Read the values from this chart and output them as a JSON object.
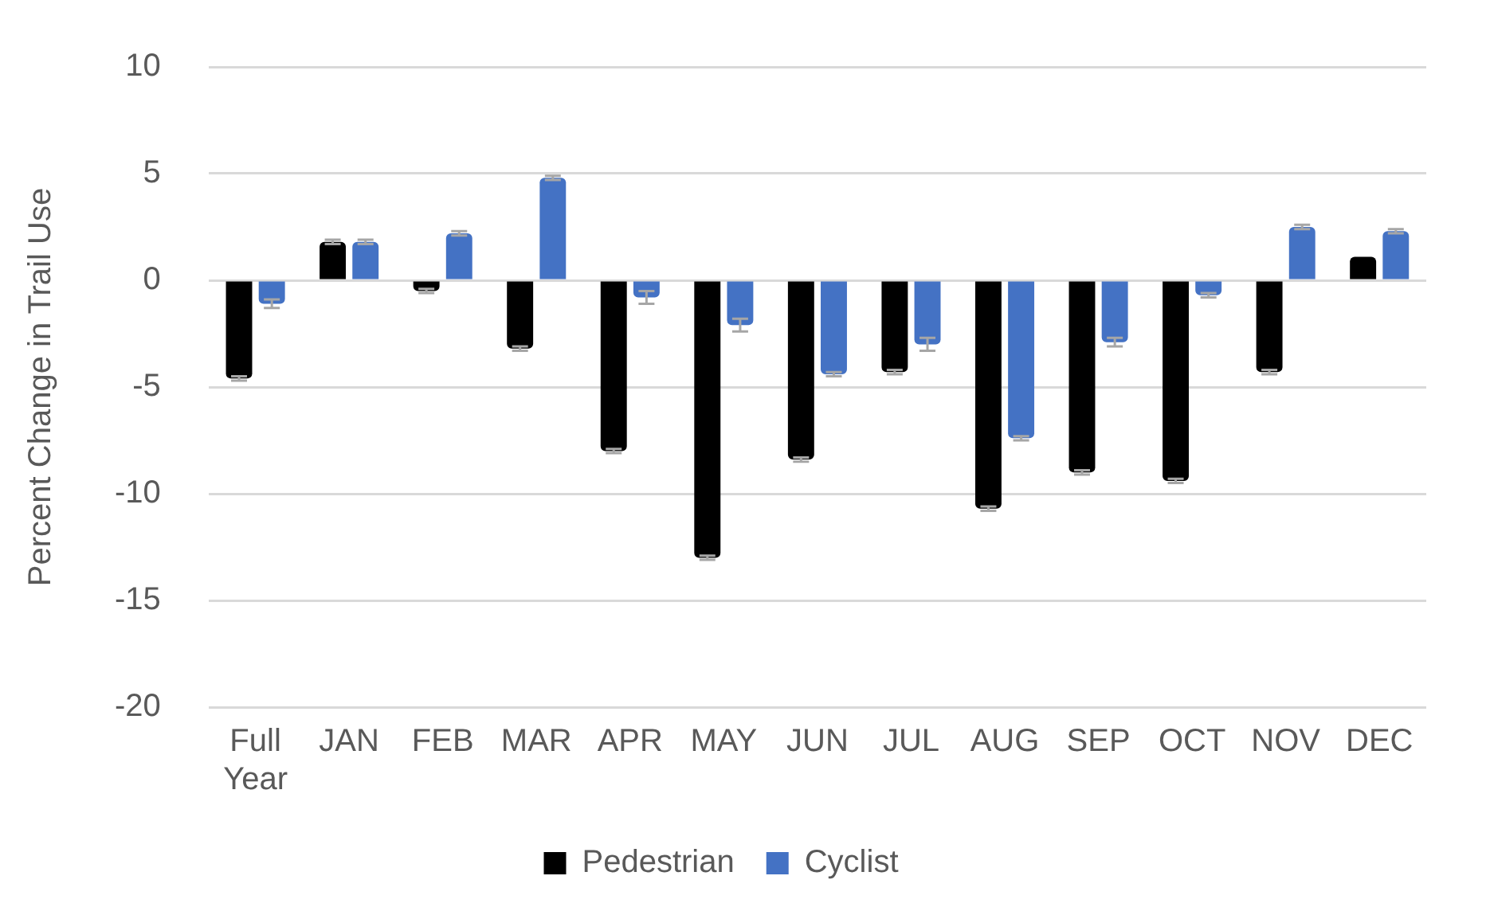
{
  "chart_data": {
    "type": "bar",
    "ylabel": "Percent Change in Trail Use",
    "categories": [
      "Full Year",
      "JAN",
      "FEB",
      "MAR",
      "APR",
      "MAY",
      "JUN",
      "JUL",
      "AUG",
      "SEP",
      "OCT",
      "NOV",
      "DEC"
    ],
    "series": [
      {
        "name": "Pedestrian",
        "color": "#000000",
        "values": [
          -4.6,
          1.8,
          -0.5,
          -3.2,
          -8.0,
          -13.0,
          -8.4,
          -4.3,
          -10.7,
          -9.0,
          -9.4,
          -4.3,
          1.1
        ],
        "errors": [
          0.1,
          0.1,
          0.1,
          0.1,
          0.1,
          0.1,
          0.1,
          0.1,
          0.1,
          0.1,
          0.1,
          0.1,
          null
        ]
      },
      {
        "name": "Cyclist",
        "color": "#4472c4",
        "values": [
          -1.1,
          1.8,
          2.2,
          4.8,
          -0.8,
          -2.1,
          -4.4,
          -3.0,
          -7.4,
          -2.9,
          -0.7,
          2.5,
          2.3
        ],
        "errors": [
          0.2,
          0.1,
          0.1,
          0.1,
          0.3,
          0.3,
          0.1,
          0.3,
          0.1,
          0.2,
          0.1,
          0.1,
          0.1
        ]
      }
    ],
    "ylim": [
      -20,
      10
    ],
    "yticks": [
      -20,
      -15,
      -10,
      -5,
      0,
      5,
      10
    ],
    "grid": "y",
    "legend": "bottom"
  }
}
